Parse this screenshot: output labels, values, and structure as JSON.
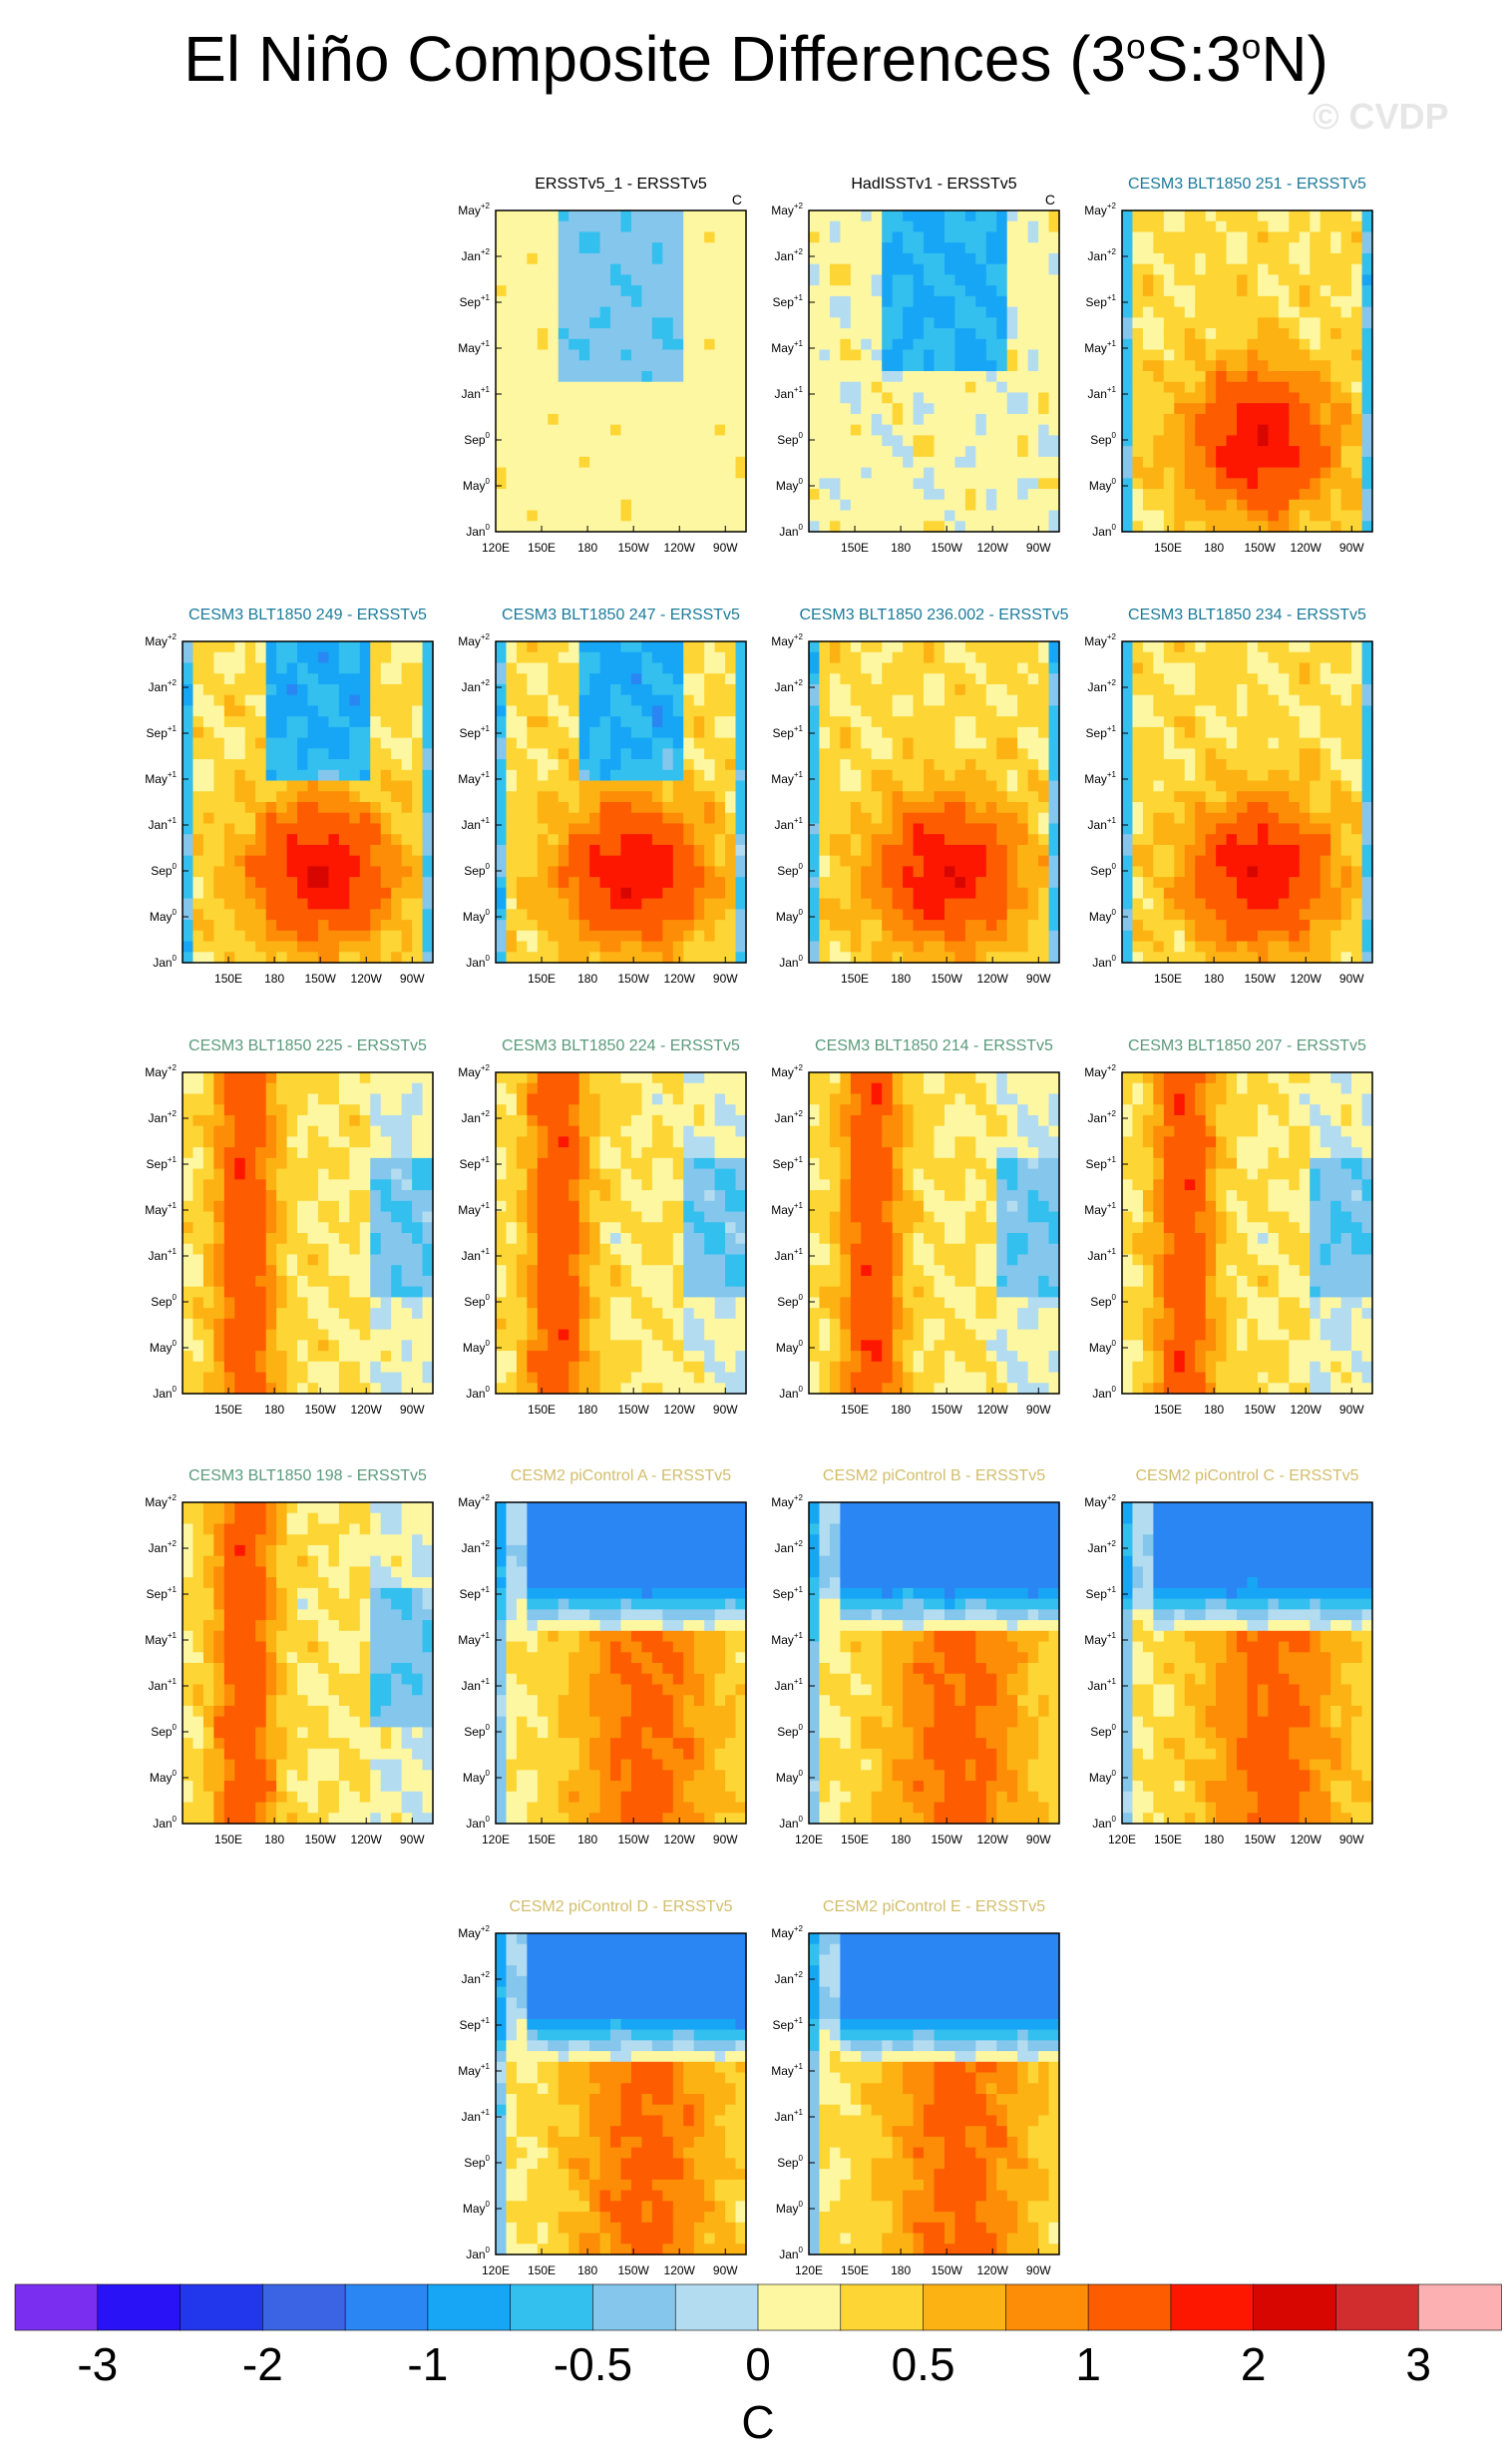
{
  "title": {
    "prefix": "El Niño Composite Differences (3",
    "sup1": "o",
    "mid": "S:3",
    "sup2": "o",
    "suffix": "N)"
  },
  "watermark": "© CVDP",
  "chart_data": {
    "type": "heatmap",
    "units": "C",
    "x_tick_labels": [
      "120E",
      "150E",
      "180",
      "150W",
      "120W",
      "90W"
    ],
    "y_tick_labels": [
      {
        "month": "Jan",
        "sup": "0"
      },
      {
        "month": "May",
        "sup": "0"
      },
      {
        "month": "Sep",
        "sup": "0"
      },
      {
        "month": "Jan",
        "sup": "+1"
      },
      {
        "month": "May",
        "sup": "+1"
      },
      {
        "month": "Sep",
        "sup": "+1"
      },
      {
        "month": "Jan",
        "sup": "+2"
      },
      {
        "month": "May",
        "sup": "+2"
      }
    ],
    "colorbar": {
      "labels": [
        "-3",
        "-2",
        "-1",
        "-0.5",
        "0",
        "0.5",
        "1",
        "2",
        "3"
      ],
      "unit_label": "C",
      "colors": [
        "#7a2ef0",
        "#2a12f6",
        "#2237ec",
        "#3a64e3",
        "#2a86f2",
        "#17a6f6",
        "#33c0ef",
        "#84c6ec",
        "#b3dcf0",
        "#fdf7a2",
        "#fdd534",
        "#fdb213",
        "#fd8c06",
        "#fd5d00",
        "#fd1600",
        "#d70600",
        "#d12c2e",
        "#fdb0b2"
      ]
    },
    "panels": [
      {
        "title": "ERSSTv5_1 - ERSSTv5",
        "title_color": "#000000",
        "unit_label": "C"
      },
      {
        "title": "HadISSTv1 - ERSSTv5",
        "title_color": "#000000",
        "unit_label": "C"
      },
      {
        "title": "CESM3 BLT1850 251 - ERSSTv5",
        "title_color": "#1a7a9a"
      },
      {
        "title": "CESM3 BLT1850 249 - ERSSTv5",
        "title_color": "#1a7a9a"
      },
      {
        "title": "CESM3 BLT1850 247 - ERSSTv5",
        "title_color": "#1a7a9a"
      },
      {
        "title": "CESM3 BLT1850 236.002 - ERSSTv5",
        "title_color": "#1a7a9a"
      },
      {
        "title": "CESM3 BLT1850 234 - ERSSTv5",
        "title_color": "#1a7a9a"
      },
      {
        "title": "CESM3 BLT1850 225 - ERSSTv5",
        "title_color": "#5a9a7a"
      },
      {
        "title": "CESM3 BLT1850 224 - ERSSTv5",
        "title_color": "#5a9a7a"
      },
      {
        "title": "CESM3 BLT1850 214 - ERSSTv5",
        "title_color": "#5a9a7a"
      },
      {
        "title": "CESM3 BLT1850 207 - ERSSTv5",
        "title_color": "#5a9a7a"
      },
      {
        "title": "CESM3 BLT1850 198 - ERSSTv5",
        "title_color": "#5a9a7a"
      },
      {
        "title": "CESM2 piControl A - ERSSTv5",
        "title_color": "#d2bd6a"
      },
      {
        "title": "CESM2 piControl B - ERSSTv5",
        "title_color": "#d2bd6a"
      },
      {
        "title": "CESM2 piControl C - ERSSTv5",
        "title_color": "#d2bd6a"
      },
      {
        "title": "CESM2 piControl D - ERSSTv5",
        "title_color": "#d2bd6a"
      },
      {
        "title": "CESM2 piControl E - ERSSTv5",
        "title_color": "#d2bd6a"
      }
    ]
  }
}
